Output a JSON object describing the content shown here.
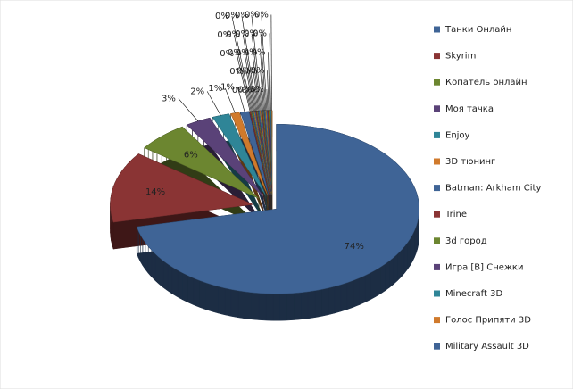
{
  "chart_data": {
    "type": "pie3d",
    "categories": [
      "Танки Онлайн",
      "Skyrim",
      "Копатель онлайн",
      "Моя тачка",
      "Enjoy",
      "3D тюнинг",
      "Batman: Arkham City",
      "Trine",
      "3d город",
      "Игра [В] Снежки",
      "Minecraft 3D",
      "Голос Припяти 3D",
      "Military Assault 3D",
      null,
      null,
      null,
      null,
      null,
      null,
      null,
      null,
      null,
      null,
      null,
      null,
      null,
      null,
      null,
      null,
      null
    ],
    "values": [
      74,
      14,
      6,
      3,
      2,
      1,
      1,
      0.1,
      0.1,
      0.1,
      0.1,
      0.1,
      0.1,
      0.1,
      0.1,
      0.1,
      0.1,
      0.1,
      0.1,
      0.1,
      0.1,
      0.1,
      0.1,
      0.1,
      0.1,
      0.1,
      0.1,
      0.1,
      0.1,
      0.1
    ],
    "value_labels": [
      "74%",
      "14%",
      "6%",
      "3%",
      "2%",
      "1%",
      "1%",
      "0%",
      "0%",
      "0%",
      "0%",
      "0%",
      "0%",
      "0%",
      "0%",
      "0%",
      "0%",
      "0%",
      "0%",
      "0%",
      "0%",
      "0%",
      "0%",
      "0%",
      "0%",
      "0%",
      "0%",
      "0%",
      "0%",
      "0%"
    ],
    "colors": [
      "#3f6496",
      "#8a3434",
      "#6c8630",
      "#5a4278",
      "#2f8597",
      "#d07a2c"
    ],
    "legend": "right"
  }
}
